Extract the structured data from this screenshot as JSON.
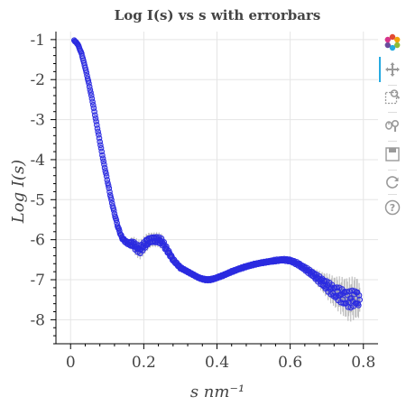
{
  "chart_data": {
    "type": "scatter",
    "title": "Log I(s) vs s with errorbars",
    "xlabel": "s nm⁻¹",
    "ylabel": "Log I(s)",
    "xlim": [
      -0.04,
      0.84
    ],
    "ylim": [
      -8.6,
      -0.8
    ],
    "x_ticks": [
      0,
      0.2,
      0.4,
      0.6,
      0.8
    ],
    "x_tick_labels": [
      "0",
      "0.2",
      "0.4",
      "0.6",
      "0.8"
    ],
    "y_ticks": [
      -1,
      -2,
      -3,
      -4,
      -5,
      -6,
      -7,
      -8
    ],
    "y_tick_labels": [
      "-1",
      "-2",
      "-3",
      "-4",
      "-5",
      "-6",
      "-7",
      "-8"
    ],
    "grid": true,
    "legend": "none",
    "series": [
      {
        "marker": "circle",
        "color": "#2b2be0",
        "errorbar_color": "#b0b0b0",
        "x": [
          0.01,
          0.02,
          0.03,
          0.04,
          0.05,
          0.06,
          0.07,
          0.08,
          0.09,
          0.1,
          0.11,
          0.12,
          0.13,
          0.14,
          0.15,
          0.16,
          0.17,
          0.18,
          0.19,
          0.2,
          0.21,
          0.22,
          0.23,
          0.24,
          0.25,
          0.26,
          0.27,
          0.28,
          0.29,
          0.3,
          0.31,
          0.32,
          0.33,
          0.34,
          0.35,
          0.36,
          0.37,
          0.38,
          0.39,
          0.4,
          0.42,
          0.44,
          0.46,
          0.48,
          0.5,
          0.52,
          0.54,
          0.56,
          0.58,
          0.6,
          0.62,
          0.64,
          0.66,
          0.68,
          0.7,
          0.72,
          0.74,
          0.76,
          0.78,
          0.79
        ],
        "y": [
          -1.02,
          -1.12,
          -1.35,
          -1.7,
          -2.1,
          -2.55,
          -3.05,
          -3.55,
          -4.05,
          -4.5,
          -4.95,
          -5.35,
          -5.7,
          -5.95,
          -6.05,
          -6.1,
          -6.1,
          -6.2,
          -6.25,
          -6.15,
          -6.05,
          -6.0,
          -6.0,
          -6.0,
          -6.05,
          -6.2,
          -6.35,
          -6.5,
          -6.6,
          -6.7,
          -6.75,
          -6.8,
          -6.85,
          -6.9,
          -6.95,
          -6.98,
          -7.0,
          -7.0,
          -6.98,
          -6.95,
          -6.88,
          -6.8,
          -6.73,
          -6.67,
          -6.62,
          -6.58,
          -6.55,
          -6.52,
          -6.5,
          -6.52,
          -6.6,
          -6.72,
          -6.85,
          -7.0,
          -7.15,
          -7.3,
          -7.4,
          -7.5,
          -7.45,
          -7.5
        ],
        "err": [
          0.01,
          0.01,
          0.01,
          0.01,
          0.01,
          0.01,
          0.01,
          0.01,
          0.01,
          0.02,
          0.02,
          0.02,
          0.03,
          0.04,
          0.05,
          0.08,
          0.12,
          0.15,
          0.15,
          0.15,
          0.15,
          0.12,
          0.12,
          0.12,
          0.12,
          0.1,
          0.08,
          0.06,
          0.05,
          0.04,
          0.03,
          0.03,
          0.03,
          0.03,
          0.03,
          0.03,
          0.03,
          0.03,
          0.03,
          0.03,
          0.03,
          0.03,
          0.03,
          0.03,
          0.03,
          0.03,
          0.03,
          0.04,
          0.04,
          0.05,
          0.06,
          0.08,
          0.1,
          0.14,
          0.2,
          0.25,
          0.3,
          0.35,
          0.35,
          0.3
        ]
      }
    ]
  },
  "toolbar": {
    "items": [
      {
        "icon": "bokeh-logo-icon",
        "tooltip": ""
      },
      {
        "icon": "pan-icon",
        "tooltip": ""
      },
      {
        "icon": "box-zoom-icon",
        "tooltip": ""
      },
      {
        "icon": "wheel-zoom-icon",
        "tooltip": ""
      },
      {
        "icon": "save-icon",
        "tooltip": ""
      },
      {
        "icon": "reset-icon",
        "tooltip": ""
      },
      {
        "icon": "help-icon",
        "tooltip": ""
      }
    ]
  }
}
